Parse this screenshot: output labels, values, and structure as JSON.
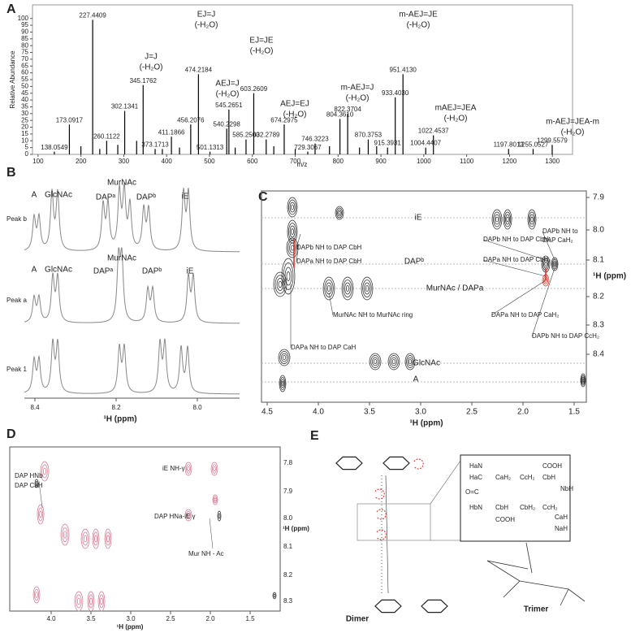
{
  "panel_labels": [
    "A",
    "B",
    "C",
    "D",
    "E"
  ],
  "chart_data": {
    "type": "bar",
    "xlabel": "m/z",
    "ylabel": "Relative Abundance",
    "color": "#000000",
    "x": [
      138.0549,
      173.0917,
      200,
      227.4409,
      244,
      260.1122,
      286,
      302.1341,
      330,
      345.1762,
      373.1713,
      390,
      411.1866,
      430,
      456.2076,
      474.2184,
      501.1313,
      540.2298,
      545.2651,
      560,
      585.25,
      603.2609,
      632.2789,
      650,
      674.2975,
      700,
      729.3067,
      746.3223,
      780,
      804.361,
      822.3704,
      850,
      870.3753,
      890,
      915.3931,
      933.403,
      951.413,
      1004.4407,
      1022.4537,
      1197.8013,
      1255.0527,
      1299.5579
    ],
    "values": [
      2,
      22,
      6,
      99,
      4,
      10,
      7,
      32,
      10,
      51,
      4,
      4,
      13,
      5,
      22,
      59,
      2,
      19,
      33,
      5,
      11,
      45,
      11,
      6,
      22,
      4,
      2,
      8,
      6,
      26,
      30,
      5,
      11,
      6,
      5,
      42,
      59,
      5,
      14,
      4,
      4,
      7
    ],
    "x_labels": [
      "138.0549",
      "173.0917",
      null,
      "227.4409",
      null,
      "260.1122",
      null,
      "302.1341",
      null,
      "345.1762",
      "373.1713",
      null,
      "411.1866",
      null,
      "456.2076",
      "474.2184",
      "501.1313",
      "540.2298",
      "545.2651",
      null,
      "585.2500",
      "603.2609",
      "632.2789",
      null,
      "674.2975",
      null,
      "729.3067",
      "746.3223",
      null,
      "804.3610",
      "822.3704",
      null,
      "870.3753",
      null,
      "915.3931",
      "933.4030",
      "951.4130",
      "1004.4407",
      "1022.4537",
      "1197.8013",
      "1255.0527",
      "1299.5579"
    ],
    "xlim": [
      87,
      1347
    ],
    "ylim": [
      0,
      110
    ],
    "xticks": [
      100,
      200,
      300,
      400,
      500,
      600,
      700,
      800,
      900,
      1000,
      1100,
      1200,
      1300
    ],
    "yticks": [
      0,
      5,
      10,
      15,
      20,
      25,
      30,
      35,
      40,
      45,
      50,
      55,
      60,
      65,
      70,
      75,
      80,
      85,
      90,
      95,
      100
    ],
    "annotation_color": "#e8271c",
    "annotations": [
      [
        "J=J",
        "(-H₂O)"
      ],
      [
        "EJ=J",
        "(-H₂O)"
      ],
      [
        "EJ=JE",
        "(-H₂O)"
      ],
      [
        "AEJ=J",
        "(-H₂O)"
      ],
      [
        "AEJ=EJ",
        "(-H₂O)"
      ],
      [
        "m-AEJ=J",
        "(-H₂O)"
      ],
      [
        "m-AEJ=JE",
        "(-H₂O)"
      ],
      [
        "mAEJ=JEA",
        "(-H₂O)"
      ],
      [
        "m-AEJ=JEA-m",
        "(-H₂O)"
      ]
    ]
  },
  "panel_b": {
    "traces": [
      {
        "name": "Peak b",
        "labels": [
          "A",
          "GlcNAc",
          "MurNAc",
          "DAPᵃ",
          "DAPᵇ",
          "iE"
        ]
      },
      {
        "name": "Peak a",
        "labels": [
          "A",
          "GlcNAc",
          "MurNAc",
          "DAPᵃ",
          "DAPᵇ",
          "iE"
        ]
      },
      {
        "name": "Peak 1"
      }
    ],
    "xticks": [
      "8.4",
      "8.2",
      "8.0"
    ],
    "xlabel": "¹H (ppm)"
  },
  "panel_c": {
    "rows": [
      "iE",
      "DAPᵇ",
      "MurNAc / DAPa",
      "GlcNAc",
      "A"
    ],
    "annotations": [
      [
        "DAPb NH to DAP CbH"
      ],
      [
        "DAPa NH to DAP CbH"
      ],
      [
        "MurNAc NH to MurNAc ring"
      ],
      [
        "DAPa NH to DAP CaH"
      ],
      [
        "DAPb NH to DAP CbH₂"
      ],
      [
        "DAPb NH to",
        "DAP CaH₂"
      ],
      [
        "DAPa NH to DAP CbH₂"
      ],
      [
        "DAPa NH to DAP CaH₂"
      ],
      [
        "DAPb NH to DAP CcH₂"
      ]
    ],
    "xticks": [
      "4.5",
      "4.0",
      "3.5",
      "3.0",
      "2.5",
      "2.0",
      "1.5"
    ],
    "yticks": [
      "7.9",
      "8.0",
      "8.1",
      "8.2",
      "8.3",
      "8.4"
    ],
    "xlabel": "¹H (ppm)",
    "ylabel": "¹H (ppm)"
  },
  "panel_d": {
    "annotations": [
      "DAP HNb",
      "DAP CaH",
      "iE NH-γ",
      "DAP HNa-iE γ",
      "Mur NH - Ac"
    ],
    "xticks": [
      "4.0",
      "3.5",
      "3.0",
      "2.5",
      "2.0",
      "1.5"
    ],
    "yticks": [
      "7.8",
      "7.9",
      "8.0",
      "8.1",
      "8.2",
      "8.3"
    ],
    "xlabel": "¹H (ppm)",
    "ylabel": "¹H (ppm)"
  },
  "panel_e": {
    "box": [
      "HaN",
      "HaC",
      "CaH₂",
      "CcH₂",
      "CbH",
      "COOH",
      "NbH",
      "O=C",
      "HbN",
      "CbH",
      "CbH₂",
      "CcH₂",
      "CaH",
      "NaH",
      "COOH"
    ],
    "dimer": "Dimer",
    "trimer": "Trimer"
  }
}
